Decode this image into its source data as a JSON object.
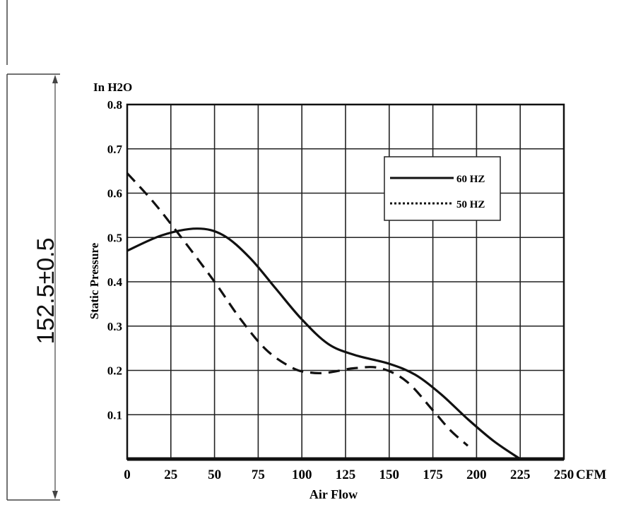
{
  "dimension_label": "152.5±0.5",
  "chart_data": {
    "type": "line",
    "unit_label": "In H2O",
    "xlabel": "Air Flow",
    "x_unit": "CFM",
    "ylabel": "Static Pressure",
    "xlim": [
      0,
      250
    ],
    "ylim": [
      0,
      0.8
    ],
    "x_ticks": [
      0,
      25,
      50,
      75,
      100,
      125,
      150,
      175,
      200,
      225,
      250
    ],
    "y_ticks": [
      0.1,
      0.2,
      0.3,
      0.4,
      0.5,
      0.6,
      0.7,
      0.8
    ],
    "grid": true,
    "legend_position": "top-right",
    "series": [
      {
        "name": "60 HZ",
        "style": "solid",
        "color": "#111111",
        "x": [
          0,
          20,
          40,
          55,
          70,
          85,
          100,
          115,
          130,
          150,
          165,
          180,
          195,
          210,
          225
        ],
        "y": [
          0.47,
          0.505,
          0.52,
          0.505,
          0.455,
          0.385,
          0.315,
          0.26,
          0.235,
          0.215,
          0.19,
          0.145,
          0.09,
          0.04,
          0.0
        ]
      },
      {
        "name": "50 HZ",
        "style": "dashed",
        "color": "#111111",
        "x": [
          0,
          15,
          30,
          50,
          65,
          80,
          95,
          105,
          115,
          130,
          145,
          160,
          175,
          185,
          195
        ],
        "y": [
          0.645,
          0.58,
          0.505,
          0.4,
          0.315,
          0.245,
          0.205,
          0.195,
          0.195,
          0.205,
          0.205,
          0.175,
          0.11,
          0.065,
          0.03
        ]
      }
    ]
  }
}
